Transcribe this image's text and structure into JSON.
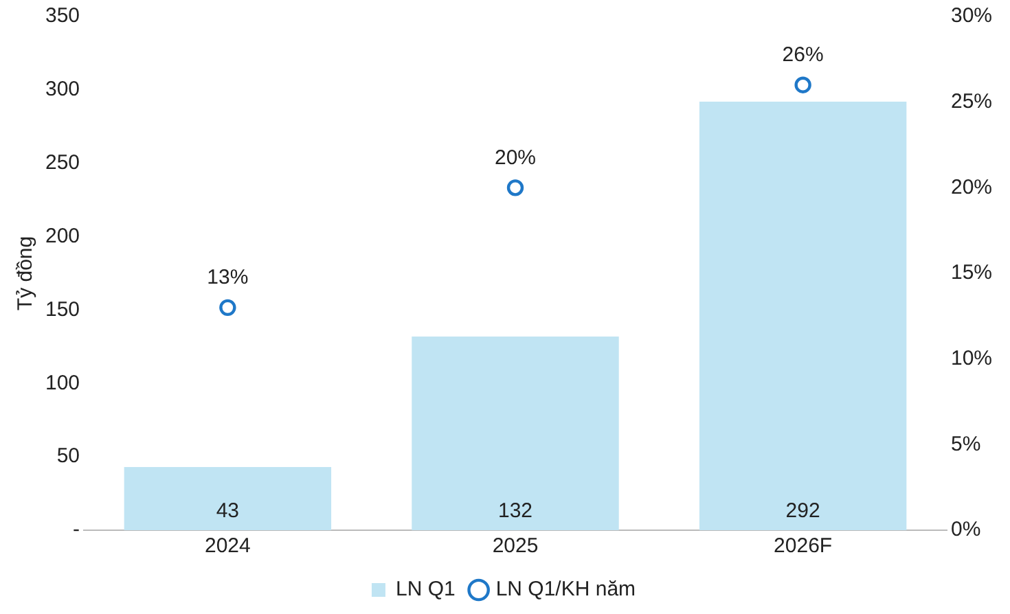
{
  "chart_data": {
    "type": "bar",
    "ylabel": "Tỷ đồng",
    "categories": [
      "2024",
      "2025",
      "2026F"
    ],
    "series": [
      {
        "name": "LN Q1",
        "color": "#c0e4f3",
        "values": [
          43,
          132,
          292
        ],
        "value_labels": [
          "43",
          "132",
          "292"
        ]
      },
      {
        "name": "LN Q1/KH năm",
        "type": "scatter",
        "axis": "y2",
        "color": "#1f78c8",
        "values": [
          13,
          20,
          26
        ],
        "value_labels": [
          "13%",
          "20%",
          "26%"
        ]
      }
    ],
    "ylim": [
      0,
      350
    ],
    "yticks": [
      {
        "value": 0,
        "label": "-"
      },
      50,
      100,
      150,
      200,
      250,
      300,
      350
    ],
    "y2lim": [
      0,
      30
    ],
    "y2ticks": [
      {
        "value": 0,
        "label": "0%"
      },
      {
        "value": 5,
        "label": "5%"
      },
      {
        "value": 10,
        "label": "10%"
      },
      {
        "value": 15,
        "label": "15%"
      },
      {
        "value": 20,
        "label": "20%"
      },
      {
        "value": 25,
        "label": "25%"
      },
      {
        "value": 30,
        "label": "30%"
      }
    ],
    "marker": "circle",
    "grid": false,
    "legend": "bottom"
  }
}
